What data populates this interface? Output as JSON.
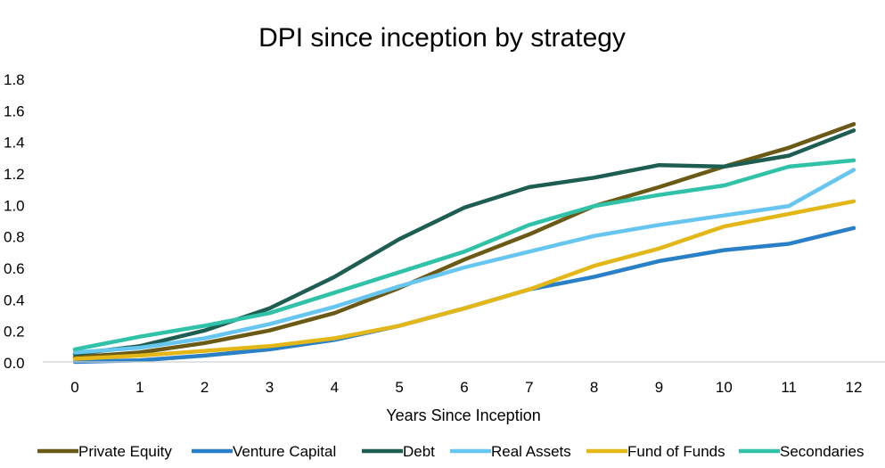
{
  "chart_data": {
    "type": "line",
    "title": "DPI since inception by strategy",
    "xlabel": "Years Since Inception",
    "ylabel": "",
    "x": [
      0,
      1,
      2,
      3,
      4,
      5,
      6,
      7,
      8,
      9,
      10,
      11,
      12
    ],
    "x_tick_labels": [
      "0",
      "1",
      "2",
      "3",
      "4",
      "5",
      "6",
      "7",
      "8",
      "9",
      "10",
      "11",
      "12"
    ],
    "ylim": [
      0,
      1.8
    ],
    "y_tick_labels": [
      "0.0",
      "0.2",
      "0.4",
      "0.6",
      "0.8",
      "1.0",
      "1.2",
      "1.4",
      "1.6",
      "1.8"
    ],
    "y_ticks": [
      0,
      0.2,
      0.4,
      0.6,
      0.8,
      1.0,
      1.2,
      1.4,
      1.6,
      1.8
    ],
    "grid": false,
    "legend_position": "bottom",
    "series": [
      {
        "name": "Private Equity",
        "color": "#6b5a16",
        "values": [
          0.03,
          0.06,
          0.12,
          0.2,
          0.31,
          0.47,
          0.65,
          0.81,
          0.99,
          1.11,
          1.24,
          1.36,
          1.51
        ]
      },
      {
        "name": "Venture Capital",
        "color": "#2a80c6",
        "values": [
          0.0,
          0.01,
          0.04,
          0.08,
          0.14,
          0.23,
          0.34,
          0.46,
          0.54,
          0.64,
          0.71,
          0.75,
          0.85
        ]
      },
      {
        "name": "Debt",
        "color": "#1e5e52",
        "values": [
          0.05,
          0.1,
          0.2,
          0.34,
          0.54,
          0.78,
          0.98,
          1.11,
          1.17,
          1.25,
          1.24,
          1.31,
          1.47
        ]
      },
      {
        "name": "Real Assets",
        "color": "#66c6f0",
        "values": [
          0.06,
          0.09,
          0.15,
          0.24,
          0.35,
          0.48,
          0.6,
          0.7,
          0.8,
          0.87,
          0.93,
          0.99,
          1.22
        ]
      },
      {
        "name": "Fund of Funds",
        "color": "#e3b717",
        "values": [
          0.02,
          0.04,
          0.07,
          0.1,
          0.15,
          0.23,
          0.34,
          0.46,
          0.61,
          0.72,
          0.86,
          0.94,
          1.02
        ]
      },
      {
        "name": "Secondaries",
        "color": "#2fc2a8",
        "values": [
          0.08,
          0.16,
          0.23,
          0.31,
          0.44,
          0.57,
          0.7,
          0.87,
          0.99,
          1.06,
          1.12,
          1.24,
          1.28
        ]
      }
    ]
  }
}
